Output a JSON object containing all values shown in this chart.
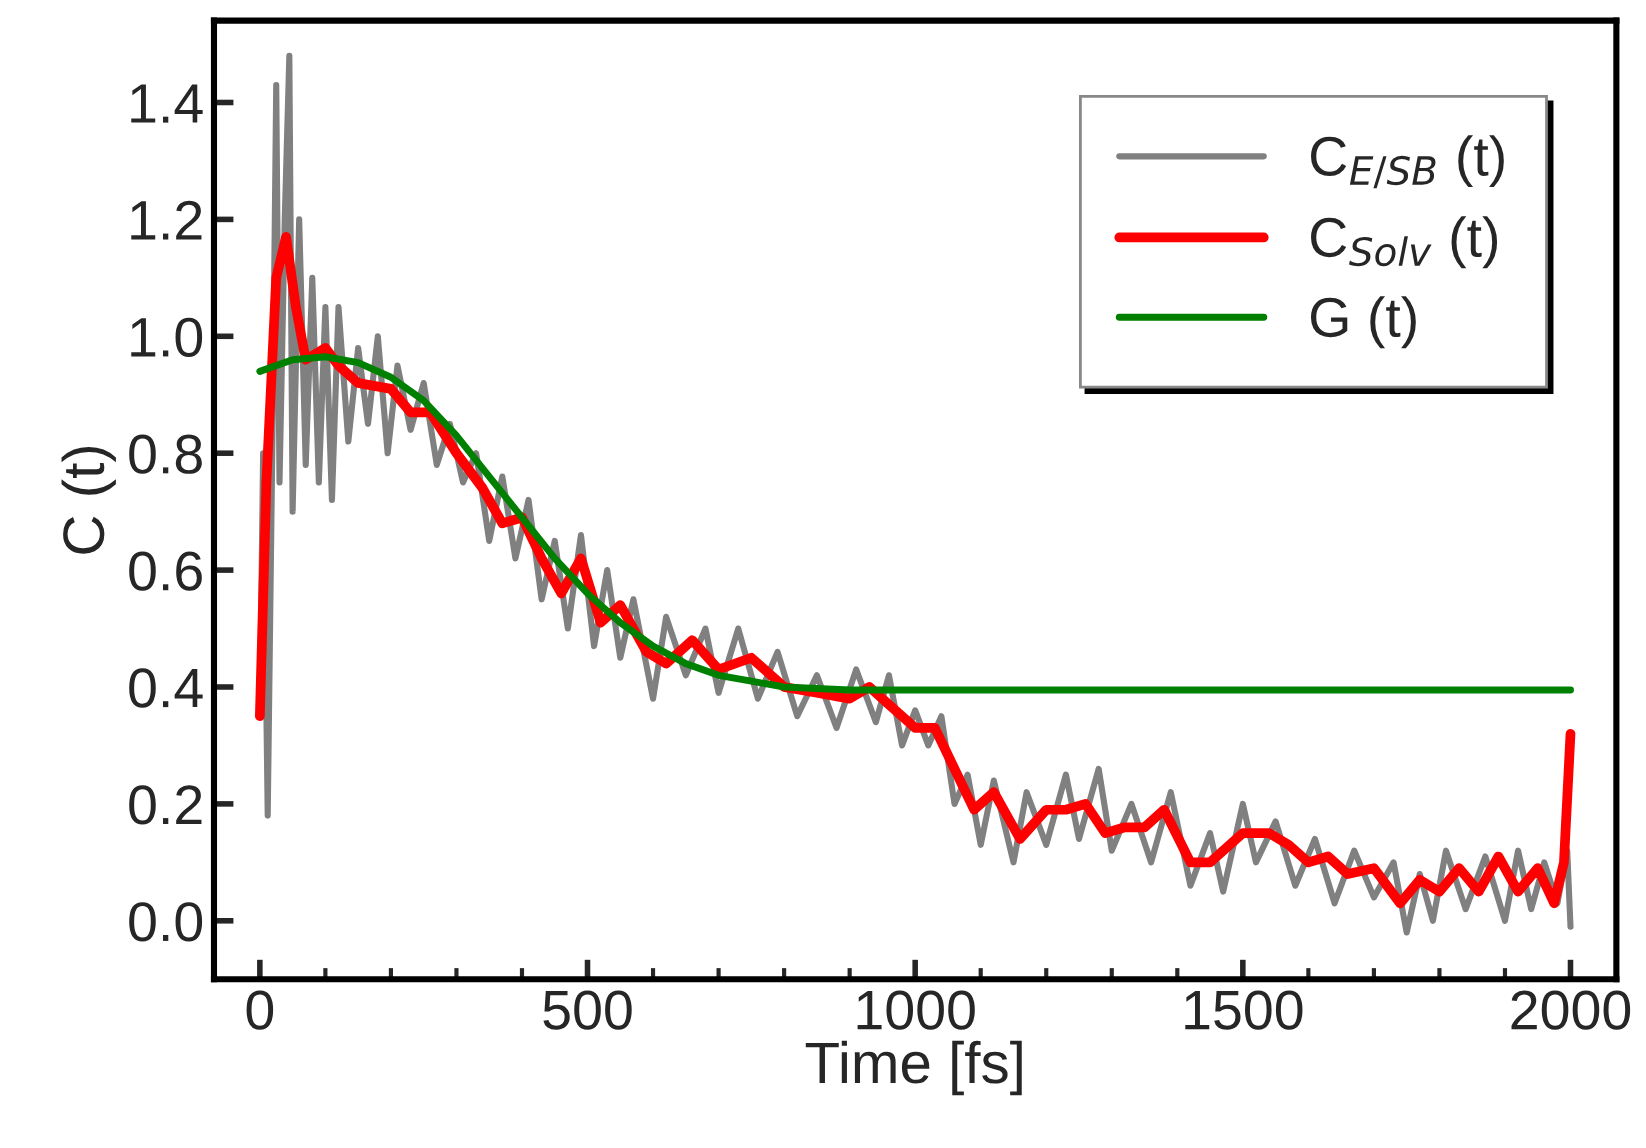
{
  "chart_data": {
    "type": "line",
    "xlabel": "Time [fs]",
    "ylabel": "C (t)",
    "xlim": [
      -70,
      2070
    ],
    "ylim": [
      -0.1,
      1.54
    ],
    "xticks": [
      0,
      500,
      1000,
      1500,
      2000
    ],
    "yticks": [
      {
        "value": 0,
        "label": "0.0"
      },
      0.2,
      0.4,
      0.6,
      0.8,
      {
        "value": 1,
        "label": "1.0"
      },
      1.2,
      1.4
    ],
    "grid": false,
    "legend": "top right",
    "marker": "none",
    "line_style": "solid",
    "series": [
      {
        "name": "C$_{E/SB}$ (t)",
        "color": "#808080",
        "x": [
          0,
          5,
          12,
          20,
          25,
          30,
          38,
          45,
          50,
          60,
          70,
          80,
          90,
          100,
          110,
          120,
          135,
          150,
          165,
          180,
          195,
          210,
          230,
          250,
          270,
          290,
          310,
          330,
          350,
          370,
          390,
          410,
          430,
          450,
          470,
          490,
          510,
          530,
          550,
          570,
          600,
          620,
          650,
          680,
          700,
          730,
          760,
          790,
          820,
          850,
          880,
          910,
          940,
          960,
          980,
          1000,
          1020,
          1040,
          1060,
          1080,
          1100,
          1120,
          1150,
          1170,
          1200,
          1230,
          1250,
          1280,
          1300,
          1330,
          1360,
          1390,
          1420,
          1450,
          1470,
          1500,
          1520,
          1550,
          1580,
          1610,
          1640,
          1670,
          1700,
          1730,
          1750,
          1770,
          1790,
          1810,
          1840,
          1870,
          1900,
          1920,
          1940,
          1960,
          1980,
          1995,
          2000
        ],
        "values": [
          0.35,
          0.8,
          0.18,
          0.9,
          1.43,
          0.75,
          1.2,
          1.48,
          0.7,
          1.2,
          0.78,
          1.1,
          0.75,
          1.05,
          0.72,
          1.05,
          0.82,
          0.98,
          0.85,
          1.0,
          0.8,
          0.95,
          0.84,
          0.92,
          0.78,
          0.85,
          0.75,
          0.8,
          0.65,
          0.76,
          0.62,
          0.72,
          0.55,
          0.65,
          0.5,
          0.66,
          0.47,
          0.6,
          0.45,
          0.55,
          0.38,
          0.52,
          0.42,
          0.5,
          0.39,
          0.5,
          0.38,
          0.46,
          0.35,
          0.42,
          0.33,
          0.43,
          0.34,
          0.42,
          0.3,
          0.36,
          0.3,
          0.35,
          0.2,
          0.25,
          0.13,
          0.24,
          0.1,
          0.22,
          0.13,
          0.25,
          0.14,
          0.26,
          0.12,
          0.2,
          0.1,
          0.22,
          0.06,
          0.15,
          0.05,
          0.2,
          0.1,
          0.17,
          0.06,
          0.14,
          0.03,
          0.12,
          0.04,
          0.1,
          -0.02,
          0.08,
          0.0,
          0.12,
          0.02,
          0.11,
          0.0,
          0.12,
          0.02,
          0.1,
          0.03,
          0.12,
          -0.01
        ]
      },
      {
        "name": "C$_{Solv}$ (t)",
        "color": "#ff0000",
        "x": [
          0,
          10,
          25,
          40,
          55,
          70,
          85,
          100,
          120,
          150,
          200,
          230,
          260,
          300,
          340,
          370,
          400,
          430,
          460,
          490,
          520,
          550,
          590,
          620,
          660,
          700,
          750,
          800,
          850,
          900,
          930,
          960,
          1000,
          1030,
          1060,
          1090,
          1120,
          1160,
          1200,
          1230,
          1260,
          1290,
          1320,
          1350,
          1380,
          1420,
          1450,
          1500,
          1540,
          1570,
          1600,
          1630,
          1660,
          1700,
          1740,
          1770,
          1800,
          1830,
          1860,
          1890,
          1920,
          1950,
          1975,
          1990,
          2000
        ],
        "values": [
          0.35,
          0.75,
          1.1,
          1.17,
          1.05,
          0.96,
          0.97,
          0.98,
          0.95,
          0.92,
          0.91,
          0.87,
          0.87,
          0.8,
          0.74,
          0.68,
          0.69,
          0.62,
          0.56,
          0.62,
          0.51,
          0.54,
          0.46,
          0.44,
          0.48,
          0.43,
          0.45,
          0.4,
          0.39,
          0.38,
          0.4,
          0.37,
          0.33,
          0.33,
          0.26,
          0.19,
          0.22,
          0.14,
          0.19,
          0.19,
          0.2,
          0.15,
          0.16,
          0.16,
          0.19,
          0.1,
          0.1,
          0.15,
          0.15,
          0.13,
          0.1,
          0.11,
          0.08,
          0.09,
          0.03,
          0.07,
          0.05,
          0.09,
          0.05,
          0.11,
          0.05,
          0.09,
          0.03,
          0.1,
          0.32
        ]
      },
      {
        "name": "G (t)",
        "color": "#008000",
        "x": [
          0,
          50,
          100,
          150,
          200,
          250,
          300,
          350,
          400,
          450,
          500,
          550,
          600,
          650,
          700,
          750,
          800,
          900,
          1000,
          2000
        ],
        "values": [
          0.94,
          0.96,
          0.965,
          0.955,
          0.93,
          0.89,
          0.83,
          0.76,
          0.69,
          0.62,
          0.56,
          0.51,
          0.47,
          0.44,
          0.42,
          0.41,
          0.4,
          0.395,
          0.395,
          0.395
        ]
      }
    ]
  }
}
